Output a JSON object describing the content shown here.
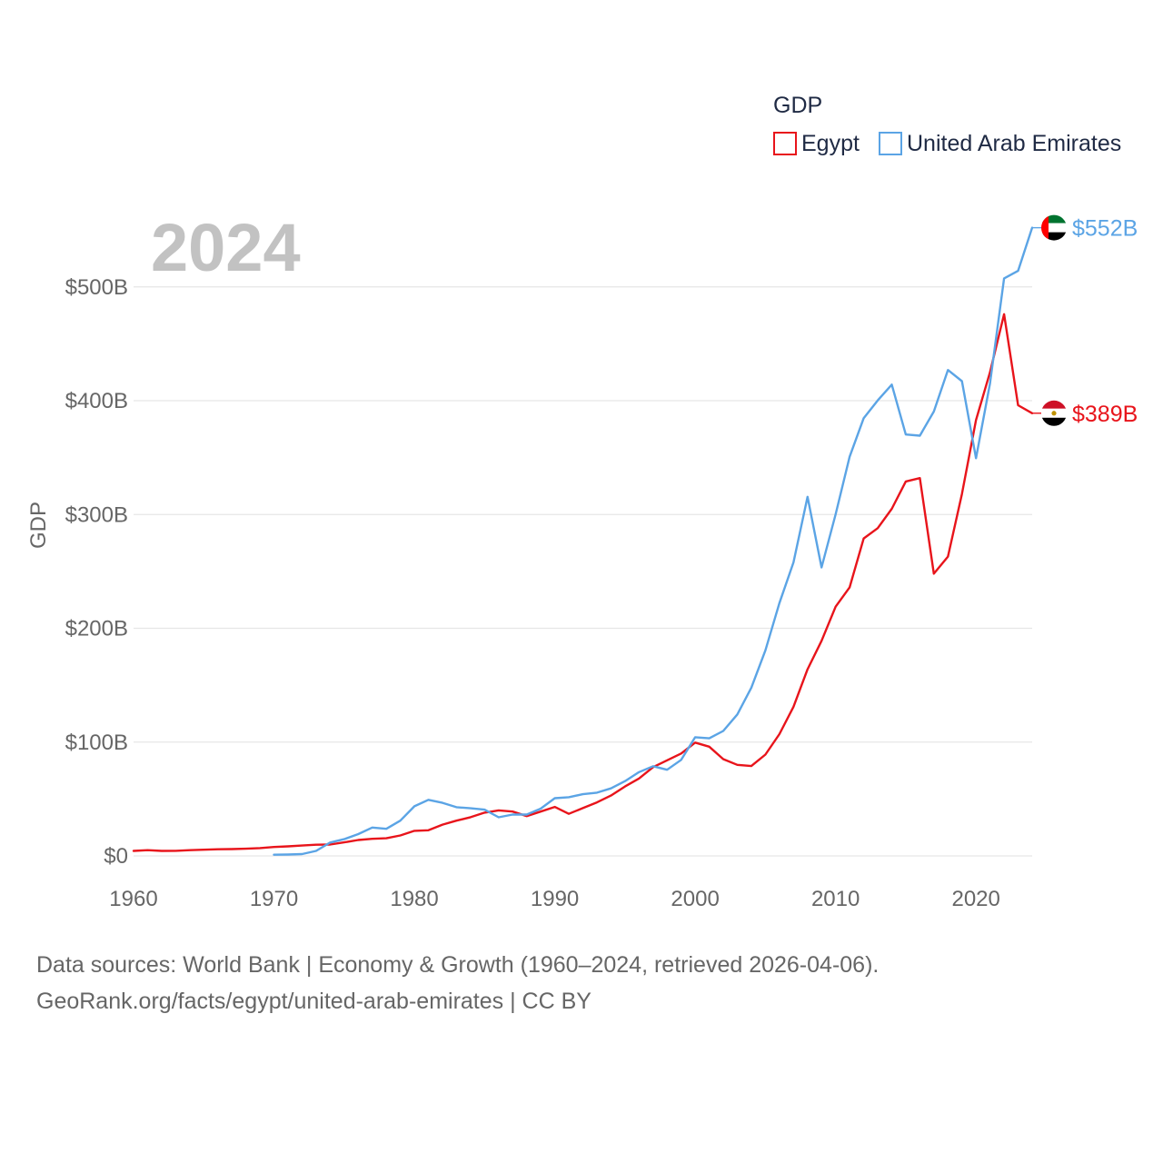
{
  "chart_data": {
    "type": "line",
    "title": "GDP",
    "highlight_year": "2024",
    "ylabel": "GDP",
    "xlabel": "",
    "xlim": [
      1960,
      2024
    ],
    "ylim": [
      0,
      560
    ],
    "y_unit": "billion USD",
    "x_ticks": [
      1960,
      1970,
      1980,
      1990,
      2000,
      2010,
      2020
    ],
    "y_ticks": [
      {
        "value": 0,
        "label": "$0"
      },
      {
        "value": 100,
        "label": "$100B"
      },
      {
        "value": 200,
        "label": "$200B"
      },
      {
        "value": 300,
        "label": "$300B"
      },
      {
        "value": 400,
        "label": "$400B"
      },
      {
        "value": 500,
        "label": "$500B"
      }
    ],
    "grid": true,
    "legend_position": "top-right",
    "series": [
      {
        "name": "Egypt",
        "color": "#e8141b",
        "flag": "egypt-flag",
        "end_label": "$389B",
        "x": [
          1960,
          1961,
          1962,
          1963,
          1964,
          1965,
          1966,
          1967,
          1968,
          1969,
          1970,
          1971,
          1972,
          1973,
          1974,
          1975,
          1976,
          1977,
          1978,
          1979,
          1980,
          1981,
          1982,
          1983,
          1984,
          1985,
          1986,
          1987,
          1988,
          1989,
          1990,
          1991,
          1992,
          1993,
          1994,
          1995,
          1996,
          1997,
          1998,
          1999,
          2000,
          2001,
          2002,
          2003,
          2004,
          2005,
          2006,
          2007,
          2008,
          2009,
          2010,
          2011,
          2012,
          2013,
          2014,
          2015,
          2016,
          2017,
          2018,
          2019,
          2020,
          2021,
          2022,
          2023,
          2024
        ],
        "values": [
          4.4,
          5.0,
          4.4,
          4.5,
          5.0,
          5.4,
          5.8,
          6.0,
          6.3,
          6.9,
          7.8,
          8.4,
          9.1,
          9.8,
          10.0,
          11.9,
          14.0,
          15.0,
          15.5,
          18.0,
          22.0,
          22.5,
          27.5,
          31.0,
          34.0,
          38.0,
          40.0,
          39.0,
          35.0,
          39.0,
          43.0,
          37.0,
          42.0,
          47.0,
          53.0,
          61.0,
          68.0,
          78.0,
          84.0,
          90.0,
          99.6,
          96.0,
          85.0,
          80.0,
          79.0,
          89.0,
          107.0,
          131.0,
          164.0,
          189.0,
          219.0,
          236.0,
          279.0,
          288.0,
          305.0,
          329.0,
          332.0,
          248.0,
          263.0,
          318.0,
          383.0,
          425.0,
          476.0,
          396.0,
          389.0
        ]
      },
      {
        "name": "United Arab Emirates",
        "color": "#5ba4e5",
        "flag": "uae-flag",
        "end_label": "$552B",
        "x": [
          1970,
          1971,
          1972,
          1973,
          1974,
          1975,
          1976,
          1977,
          1978,
          1979,
          1980,
          1981,
          1982,
          1983,
          1984,
          1985,
          1986,
          1987,
          1988,
          1989,
          1990,
          1991,
          1992,
          1993,
          1994,
          1995,
          1996,
          1997,
          1998,
          1999,
          2000,
          2001,
          2002,
          2003,
          2004,
          2005,
          2006,
          2007,
          2008,
          2009,
          2010,
          2011,
          2012,
          2013,
          2014,
          2015,
          2016,
          2017,
          2018,
          2019,
          2020,
          2021,
          2022,
          2023,
          2024
        ],
        "values": [
          1.0,
          1.2,
          1.6,
          4.4,
          11.7,
          14.7,
          19.2,
          24.9,
          23.8,
          31.0,
          43.6,
          49.3,
          46.6,
          42.8,
          41.8,
          40.6,
          33.9,
          36.3,
          36.3,
          41.5,
          50.7,
          51.6,
          54.2,
          55.6,
          59.3,
          65.7,
          73.6,
          78.8,
          75.7,
          84.4,
          104.3,
          103.3,
          109.8,
          124.3,
          147.8,
          180.6,
          222.1,
          257.9,
          315.5,
          253.5,
          300.2,
          350.7,
          384.7,
          400.2,
          414.1,
          370.3,
          369.3,
          390.5,
          427.0,
          417.2,
          349.5,
          415.2,
          507.5,
          514.1,
          552.0
        ]
      }
    ]
  },
  "footer": {
    "line1": "Data sources: World Bank | Economy & Growth (1960–2024, retrieved 2026-04-06).",
    "line2": "GeoRank.org/facts/egypt/united-arab-emirates | CC BY"
  }
}
